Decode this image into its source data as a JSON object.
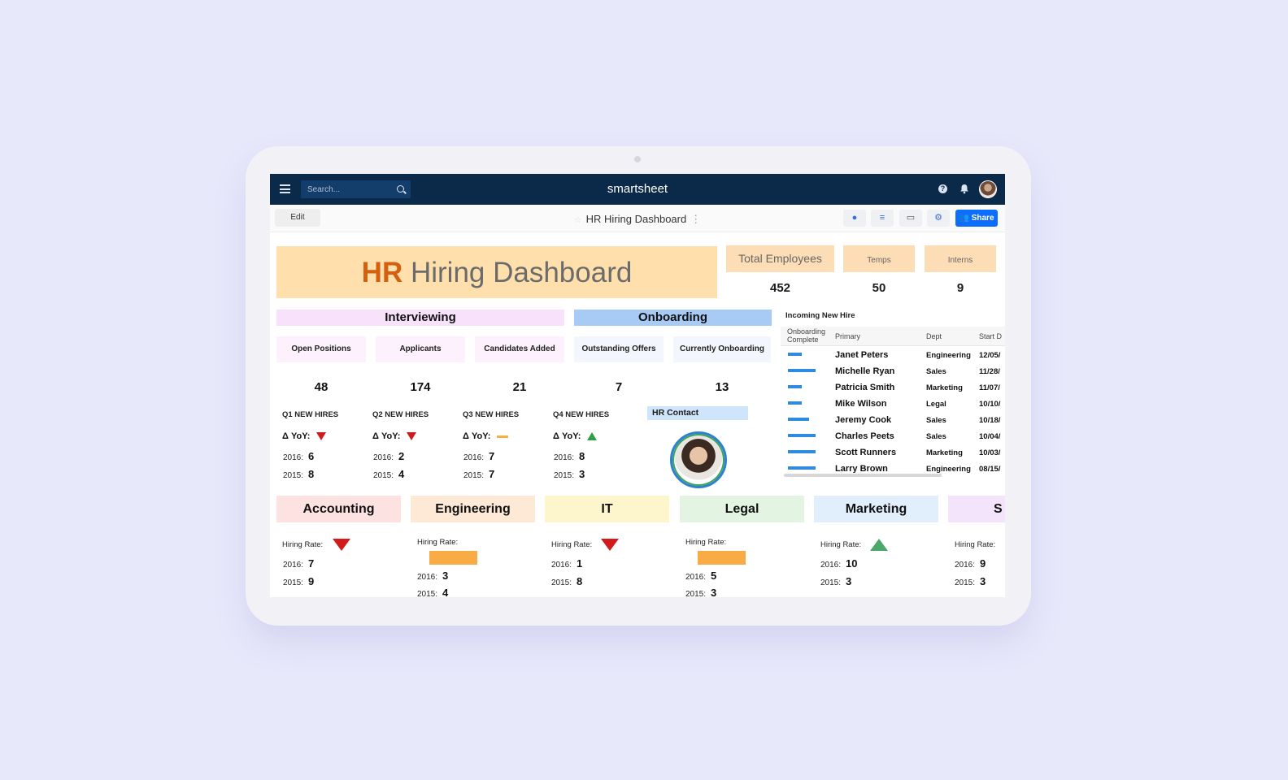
{
  "nav": {
    "search_placeholder": "Search...",
    "brand": "smartsheet",
    "help_glyph": "?"
  },
  "toolbar": {
    "edit_label": "Edit",
    "title": "HR Hiring Dashboard",
    "share_label": "Share"
  },
  "hero": {
    "bold": "HR",
    "rest": " Hiring Dashboard"
  },
  "stats": [
    {
      "label": "Total Employees",
      "value": "452"
    },
    {
      "label": "Temps",
      "value": "50"
    },
    {
      "label": "Interns",
      "value": "9"
    }
  ],
  "sections": {
    "interviewing": "Interviewing",
    "onboarding": "Onboarding"
  },
  "metrics": [
    {
      "label": "Open Positions",
      "value": "48"
    },
    {
      "label": "Applicants",
      "value": "174"
    },
    {
      "label": "Candidates Added",
      "value": "21"
    },
    {
      "label": "Outstanding Offers",
      "value": "7"
    },
    {
      "label": "Currently Onboarding",
      "value": "13"
    }
  ],
  "quarters": [
    {
      "title": "Q1 NEW HIRES",
      "yoy_label": "Δ YoY:",
      "trend": "down",
      "y2016_label": "2016:",
      "y2016": "6",
      "y2015_label": "2015:",
      "y2015": "8"
    },
    {
      "title": "Q2 NEW HIRES",
      "yoy_label": "Δ YoY:",
      "trend": "down",
      "y2016_label": "2016:",
      "y2016": "2",
      "y2015_label": "2015:",
      "y2015": "4"
    },
    {
      "title": "Q3 NEW HIRES",
      "yoy_label": "Δ YoY:",
      "trend": "flat",
      "y2016_label": "2016:",
      "y2016": "7",
      "y2015_label": "2015:",
      "y2015": "7"
    },
    {
      "title": "Q4 NEW HIRES",
      "yoy_label": "Δ YoY:",
      "trend": "up",
      "y2016_label": "2016:",
      "y2016": "8",
      "y2015_label": "2015:",
      "y2015": "3"
    }
  ],
  "hr_contact": {
    "label": "HR Contact"
  },
  "new_hires": {
    "title": "Incoming New Hire",
    "columns": {
      "complete": "Onboarding Complete",
      "primary": "Primary",
      "dept": "Dept",
      "start": "Start D"
    },
    "rows": [
      {
        "progress": 0.3,
        "name": "Janet Peters",
        "dept": "Engineering",
        "start": "12/05/"
      },
      {
        "progress": 1.0,
        "name": "Michelle Ryan",
        "dept": "Sales",
        "start": "11/28/"
      },
      {
        "progress": 0.3,
        "name": "Patricia Smith",
        "dept": "Marketing",
        "start": "11/07/"
      },
      {
        "progress": 0.3,
        "name": "Mike Wilson",
        "dept": "Legal",
        "start": "10/10/"
      },
      {
        "progress": 0.65,
        "name": "Jeremy Cook",
        "dept": "Sales",
        "start": "10/18/"
      },
      {
        "progress": 1.0,
        "name": "Charles Peets",
        "dept": "Sales",
        "start": "10/04/"
      },
      {
        "progress": 1.0,
        "name": "Scott Runners",
        "dept": "Marketing",
        "start": "10/03/"
      },
      {
        "progress": 1.0,
        "name": "Larry Brown",
        "dept": "Engineering",
        "start": "08/15/"
      }
    ]
  },
  "departments": [
    {
      "name": "Accounting",
      "color": "#fde2e2",
      "rate_label": "Hiring Rate:",
      "trend": "down",
      "y2016_label": "2016:",
      "y2016": "7",
      "y2015_label": "2015:",
      "y2015": "9"
    },
    {
      "name": "Engineering",
      "color": "#fde9d6",
      "rate_label": "Hiring Rate:",
      "trend": "flat",
      "y2016_label": "2016:",
      "y2016": "3",
      "y2015_label": "2015:",
      "y2015": "4"
    },
    {
      "name": "IT",
      "color": "#fdf6cd",
      "rate_label": "Hiring Rate:",
      "trend": "down",
      "y2016_label": "2016:",
      "y2016": "1",
      "y2015_label": "2015:",
      "y2015": "8"
    },
    {
      "name": "Legal",
      "color": "#e3f4e3",
      "rate_label": "Hiring Rate:",
      "trend": "flat",
      "y2016_label": "2016:",
      "y2016": "5",
      "y2015_label": "2015:",
      "y2015": "3"
    },
    {
      "name": "Marketing",
      "color": "#e1eefb",
      "rate_label": "Hiring Rate:",
      "trend": "up",
      "y2016_label": "2016:",
      "y2016": "10",
      "y2015_label": "2015:",
      "y2015": "3"
    },
    {
      "name": "S",
      "color": "#f3e3fb",
      "rate_label": "Hiring Rate:",
      "trend": "none",
      "y2016_label": "2016:",
      "y2016": "9",
      "y2015_label": "2015:",
      "y2015": "3"
    }
  ],
  "colors": {
    "nav": "#0b2a4a",
    "share": "#0d6efd",
    "hero_bg": "#ffe0ad",
    "hero_accent": "#d4600f",
    "interviewing_bg": "#f7e1fb",
    "onboarding_bg": "#a8cbf5"
  }
}
